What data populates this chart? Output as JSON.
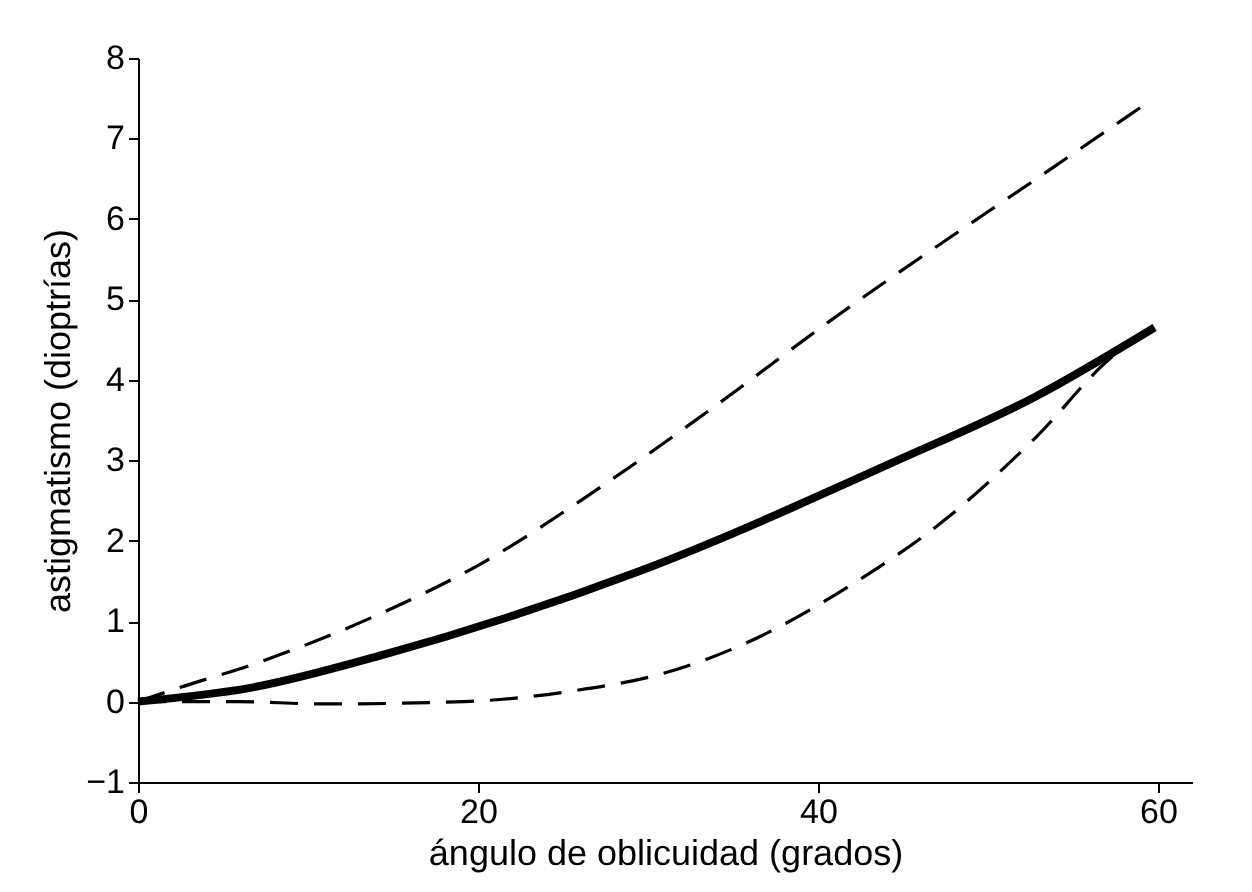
{
  "chart_data": {
    "type": "line",
    "xlabel": "ángulo de oblicuidad (grados)",
    "ylabel": "astigmatismo (dioptrías)",
    "xlim": [
      0,
      62
    ],
    "xticks": [
      0,
      20,
      40,
      60
    ],
    "ylim": [
      -1,
      8
    ],
    "yticks": [
      -1,
      0,
      1,
      2,
      3,
      4,
      5,
      6,
      7,
      8
    ],
    "grid": false,
    "marker": "none",
    "series": [
      {
        "color": "#000000",
        "line_style": "solid",
        "x": [
          0,
          6.6,
          14.4,
          29.6,
          44.7,
          52.7,
          59.8
        ],
        "values": [
          0,
          0.17,
          0.58,
          1.63,
          3.0,
          3.78,
          4.65
        ]
      },
      {
        "color": "#000000",
        "line_style": "dashed",
        "x": [
          0,
          2.4,
          7,
          13.7,
          20.4,
          27.1,
          33.8,
          40.5,
          53.9,
          59
        ],
        "values": [
          0,
          0.17,
          0.48,
          1.04,
          1.74,
          2.65,
          3.65,
          4.7,
          6.65,
          7.39
        ]
      },
      {
        "color": "#000000",
        "line_style": "dashed",
        "x": [
          0,
          5.8,
          10.8,
          19.2,
          25.5,
          30.9,
          35.9,
          41.8,
          47.7,
          52.7,
          57.7,
          59.4
        ],
        "values": [
          0,
          0,
          -0.03,
          0,
          0.13,
          0.35,
          0.74,
          1.43,
          2.3,
          3.26,
          4.35,
          4.57
        ]
      }
    ]
  }
}
